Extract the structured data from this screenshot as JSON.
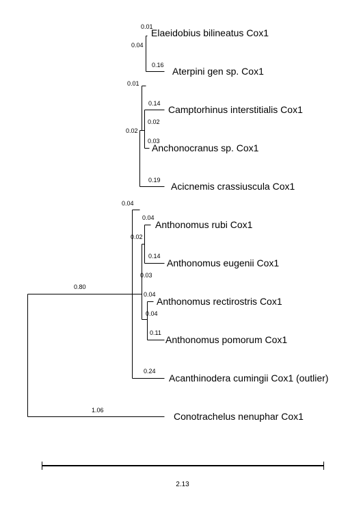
{
  "tree": {
    "taxa": [
      {
        "id": "t1",
        "label": "Elaeidobius bilineatus Cox1",
        "length": "0.01"
      },
      {
        "id": "t2",
        "label": "Aterpini gen sp. Cox1",
        "length": "0.16"
      },
      {
        "id": "t3",
        "label": "Camptorhinus interstitialis Cox1",
        "length": "0.14"
      },
      {
        "id": "t4",
        "label": "Anchonocranus sp. Cox1",
        "length": "0.03"
      },
      {
        "id": "t5",
        "label": "Acicnemis crassiuscula Cox1",
        "length": "0.19"
      },
      {
        "id": "t6",
        "label": "Anthonomus rubi Cox1",
        "length": "0.04"
      },
      {
        "id": "t7",
        "label": "Anthonomus eugenii Cox1",
        "length": "0.14"
      },
      {
        "id": "t8",
        "label": "Anthonomus rectirostris Cox1",
        "length": "0.04"
      },
      {
        "id": "t9",
        "label": "Anthonomus pomorum Cox1",
        "length": "0.11"
      },
      {
        "id": "t10",
        "label": "Acanthinodera cumingii Cox1 (outlier)",
        "length": "0.24"
      },
      {
        "id": "t11",
        "label": "Conotrachelus nenuphar Cox1",
        "length": "1.06"
      }
    ],
    "internal_lengths": [
      {
        "id": "n12",
        "length": "0.04"
      },
      {
        "id": "n34",
        "length": "0.02"
      },
      {
        "id": "n1234",
        "length": "0.01"
      },
      {
        "id": "n12345",
        "length": "0.02"
      },
      {
        "id": "n67",
        "length": "0.02"
      },
      {
        "id": "n89",
        "length": "0.04"
      },
      {
        "id": "n6789",
        "length": "0.03"
      },
      {
        "id": "ingroup",
        "length": "0.04"
      },
      {
        "id": "root_ingroup",
        "length": "0.80"
      }
    ],
    "scale_bar": {
      "label": "2.13"
    }
  }
}
